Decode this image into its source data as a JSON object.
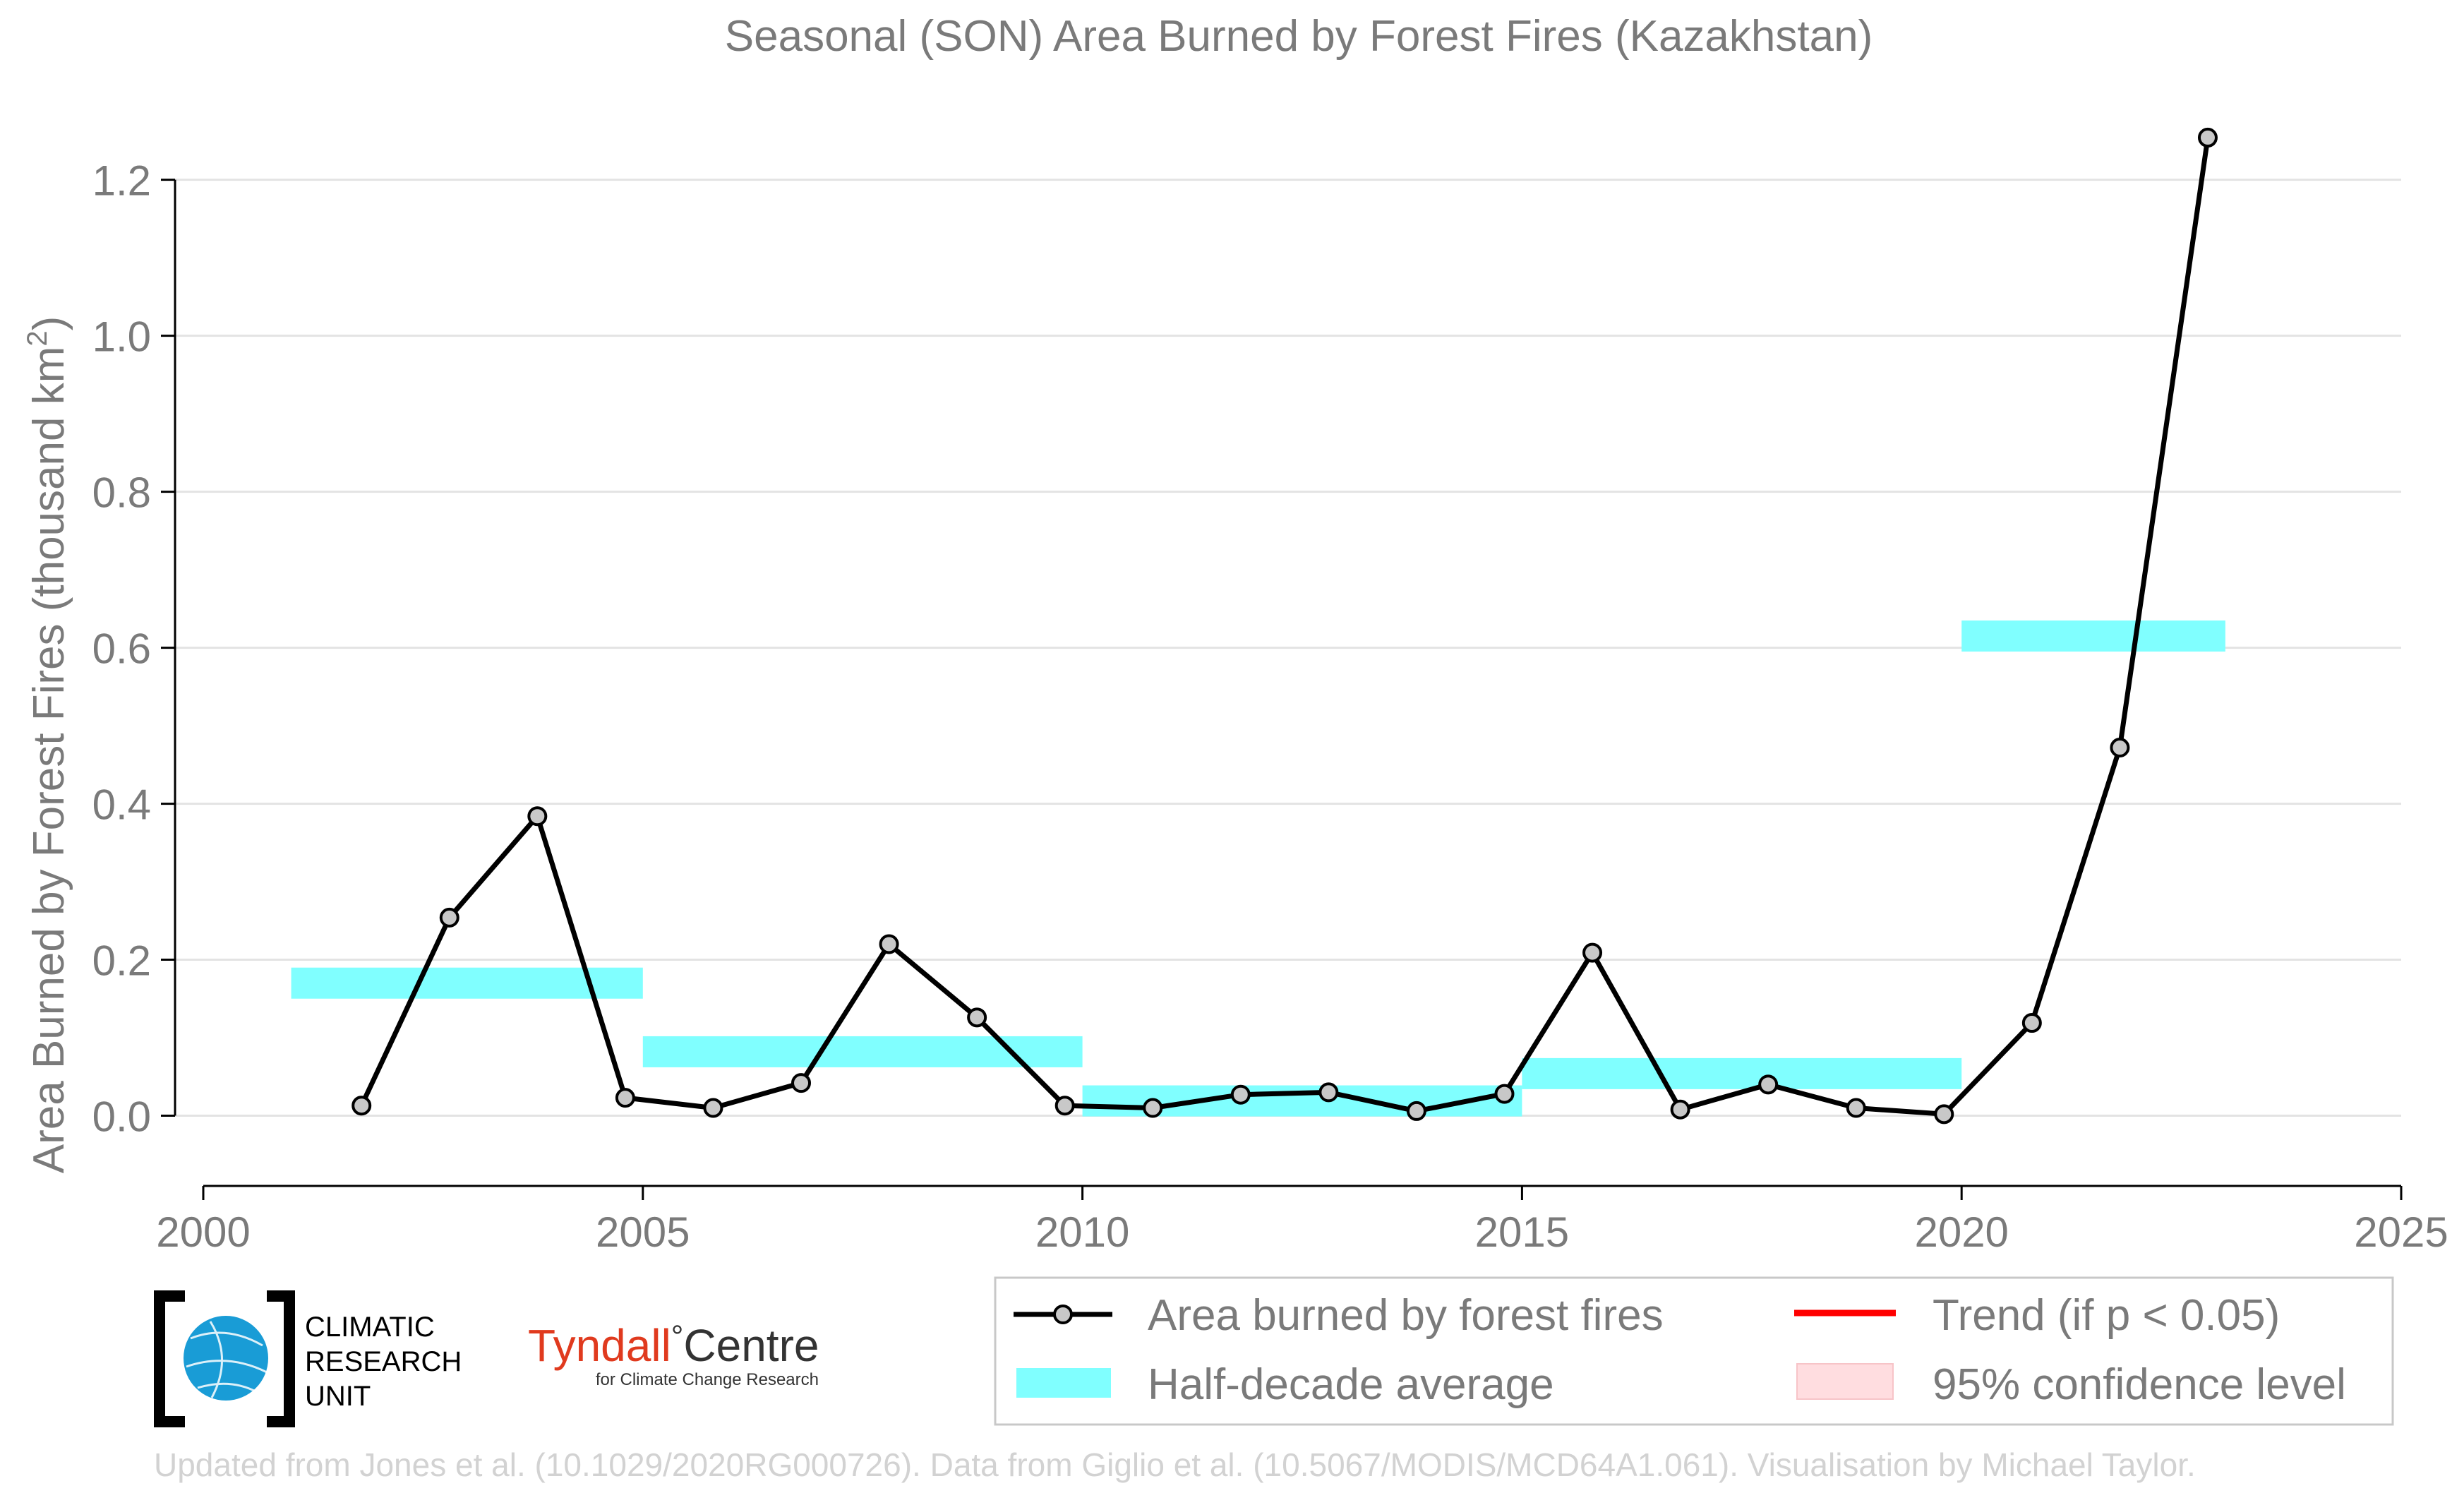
{
  "chart_data": {
    "type": "line",
    "title": "Seasonal (SON) Area Burned by Forest Fires (Kazakhstan)",
    "ylabel_main": "Area Burned by Forest Fires (thousand km",
    "ylabel_sup": "2",
    "ylabel_end": ")",
    "xlim": [
      2000,
      2025
    ],
    "ylim": [
      -0.09,
      1.32
    ],
    "xticks": [
      2000,
      2005,
      2010,
      2015,
      2020,
      2025
    ],
    "yticks": [
      0.0,
      0.2,
      0.4,
      0.6,
      0.8,
      1.0,
      1.2
    ],
    "ytick_labels": [
      "0.0",
      "0.2",
      "0.4",
      "0.6",
      "0.8",
      "1.0",
      "1.2"
    ],
    "grid": "horizontal",
    "series": [
      {
        "name": "Area burned by forest fires",
        "color": "#000000",
        "marker_fill": "#c8c8c8",
        "x": [
          2001.8,
          2002.8,
          2003.8,
          2004.8,
          2005.8,
          2006.8,
          2007.8,
          2008.8,
          2009.8,
          2010.8,
          2011.8,
          2012.8,
          2013.8,
          2014.8,
          2015.8,
          2016.8,
          2017.8,
          2018.8,
          2019.8,
          2020.8,
          2021.8,
          2022.8
        ],
        "y": [
          0.013,
          0.254,
          0.384,
          0.023,
          0.01,
          0.042,
          0.22,
          0.126,
          0.013,
          0.01,
          0.027,
          0.03,
          0.006,
          0.028,
          0.209,
          0.008,
          0.04,
          0.01,
          0.002,
          0.119,
          0.472,
          1.254
        ]
      }
    ],
    "half_decade_average": {
      "name": "Half-decade average",
      "color": "#80ffff",
      "segments": [
        {
          "x0": 2001,
          "x1": 2005,
          "y": 0.17
        },
        {
          "x0": 2005,
          "x1": 2010,
          "y": 0.082
        },
        {
          "x0": 2010,
          "x1": 2015,
          "y": 0.019
        },
        {
          "x0": 2015,
          "x1": 2020,
          "y": 0.054
        },
        {
          "x0": 2020,
          "x1": 2023,
          "y": 0.615
        }
      ]
    },
    "legend": {
      "placement": "bottom-right",
      "entries": [
        {
          "key": "line",
          "label": "Area burned by forest fires"
        },
        {
          "key": "trend",
          "label": "Trend (if p < 0.05)",
          "color": "#ff0000"
        },
        {
          "key": "band",
          "label": "Half-decade average"
        },
        {
          "key": "ci",
          "label": "95% confidence level",
          "color": "#ffdde0"
        }
      ]
    }
  },
  "logos": {
    "cru": [
      "CLIMATIC",
      "RESEARCH",
      "UNIT"
    ],
    "tyndall_main": "Tyndall",
    "tyndall_degree": "°",
    "tyndall_centre": "Centre",
    "tyndall_sub": "for Climate Change Research"
  },
  "credit": "Updated from Jones et al. (10.1029/2020RG000726). Data from Giglio et al. (10.5067/MODIS/MCD64A1.061). Visualisation by Michael Taylor."
}
